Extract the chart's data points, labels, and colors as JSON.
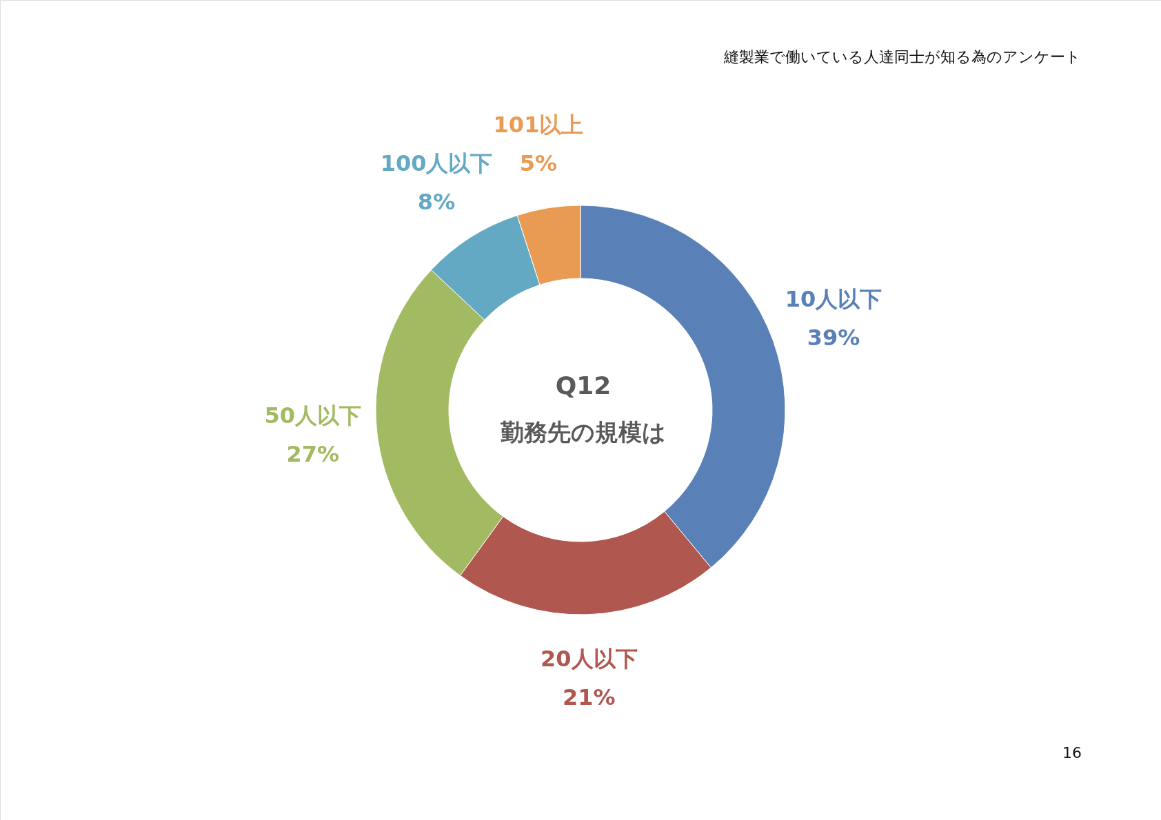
{
  "chart_data": {
    "type": "donut",
    "title": "Q12",
    "subtitle": "勤務先の規模は",
    "categories": [
      "10人以下",
      "20人以下",
      "50人以下",
      "100人以下",
      "101以上"
    ],
    "values": [
      39,
      21,
      27,
      8,
      5
    ],
    "colors": [
      "#5a80b8",
      "#b0574f",
      "#a2bb63",
      "#63a9c4",
      "#e99b54"
    ],
    "value_labels": [
      "39%",
      "21%",
      "27%",
      "8%",
      "5%"
    ],
    "annotations": [
      "縫製業で働いている人達同士が知る為のアンケート",
      "16"
    ]
  }
}
